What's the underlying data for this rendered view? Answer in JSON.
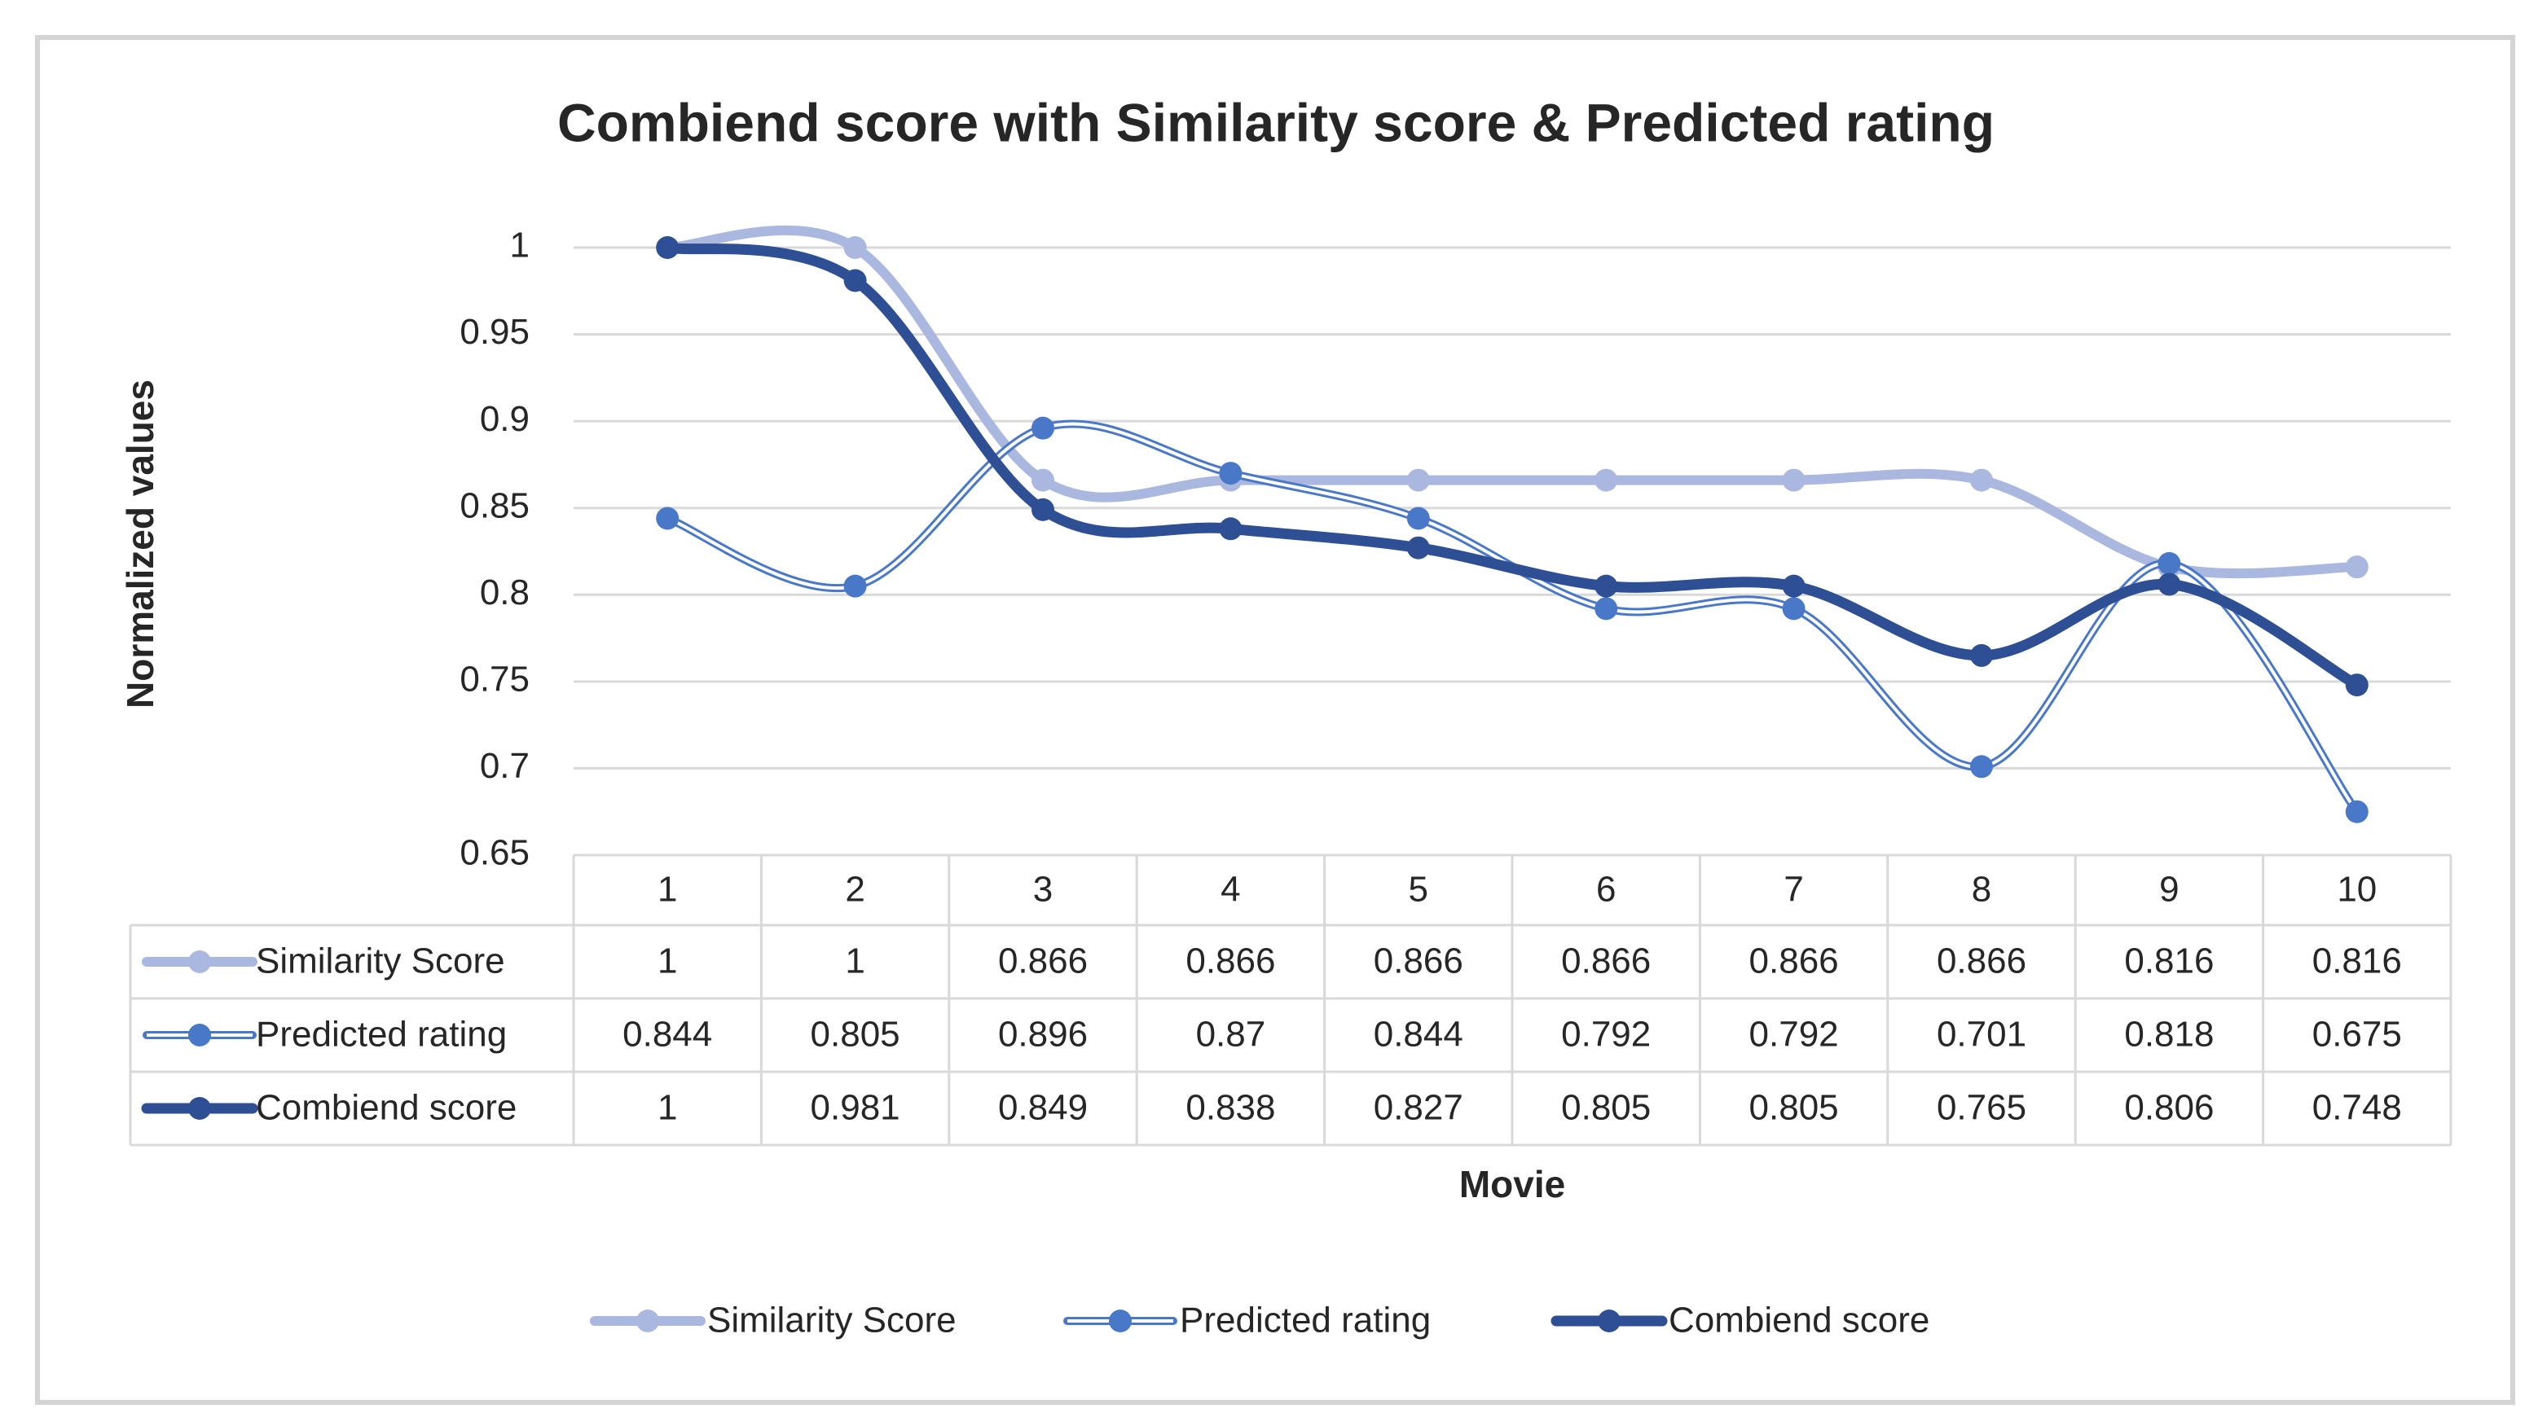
{
  "chart_data": {
    "type": "line",
    "title": "Combiend score with Similarity score & Predicted rating",
    "y_label": "Normalized values",
    "x_label": "Movie",
    "categories": [
      "1",
      "2",
      "3",
      "4",
      "5",
      "6",
      "7",
      "8",
      "9",
      "10"
    ],
    "series": [
      {
        "name": "Similarity Score",
        "color": "#aab7df",
        "style": "thick",
        "values": [
          1,
          1,
          0.866,
          0.866,
          0.866,
          0.866,
          0.866,
          0.866,
          0.816,
          0.816
        ]
      },
      {
        "name": "Predicted rating",
        "color": "#4a78c8",
        "style": "double",
        "values": [
          0.844,
          0.805,
          0.896,
          0.87,
          0.844,
          0.792,
          0.792,
          0.701,
          0.818,
          0.675
        ]
      },
      {
        "name": "Combiend score",
        "color": "#2e4f94",
        "style": "bold",
        "values": [
          1,
          0.981,
          0.849,
          0.838,
          0.827,
          0.805,
          0.805,
          0.765,
          0.806,
          0.748
        ]
      }
    ],
    "ylim": [
      0.65,
      1
    ],
    "yticks": [
      0.65,
      0.7,
      0.75,
      0.8,
      0.85,
      0.9,
      0.95,
      1
    ],
    "grid": true,
    "data_table": true,
    "legend": "bottom"
  }
}
